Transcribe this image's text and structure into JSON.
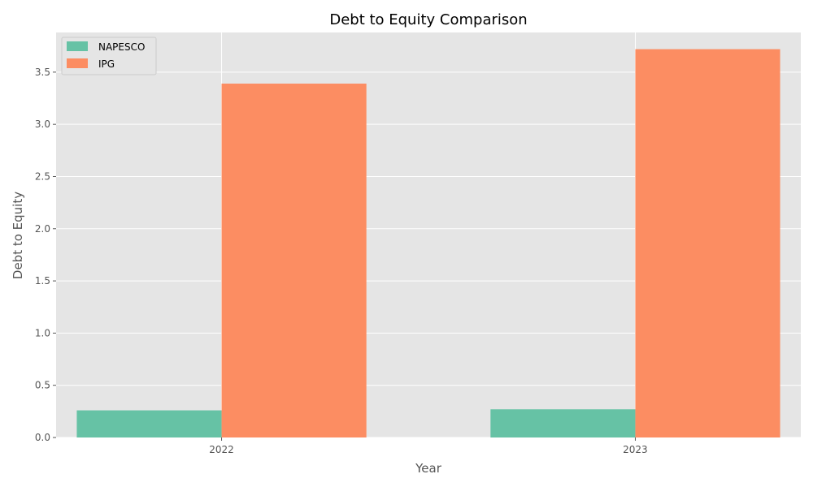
{
  "chart_data": {
    "type": "bar",
    "title": "Debt to Equity Comparison",
    "xlabel": "Year",
    "ylabel": "Debt to Equity",
    "categories": [
      "2022",
      "2023"
    ],
    "series": [
      {
        "name": "NAPESCO",
        "values": [
          0.26,
          0.27
        ],
        "color": "#66c2a5"
      },
      {
        "name": "IPG",
        "values": [
          3.39,
          3.72
        ],
        "color": "#fc8d62"
      }
    ],
    "ylim": [
      0,
      3.88
    ],
    "yticks": [
      "0.0",
      "0.5",
      "1.0",
      "1.5",
      "2.0",
      "2.5",
      "3.0",
      "3.5"
    ],
    "grid": true,
    "legend_position": "top-left",
    "plot_background": "#e5e5e5",
    "grid_color": "#ffffff"
  }
}
